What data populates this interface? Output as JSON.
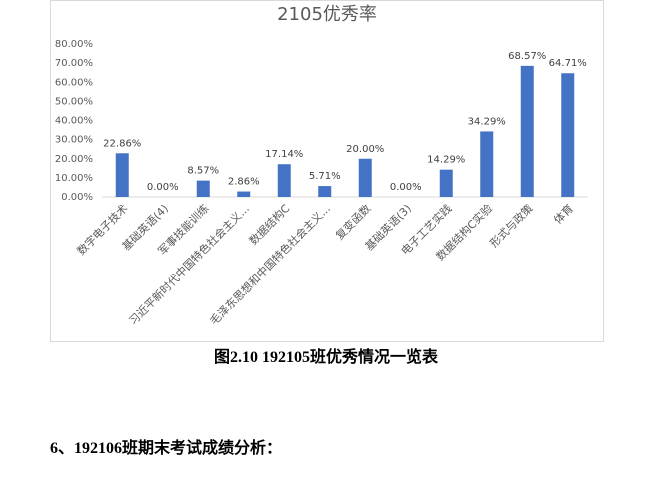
{
  "chart_data": {
    "type": "bar",
    "title": "2105优秀率",
    "categories": [
      "数字电子技术",
      "基础英语(4)",
      "军事技能训练",
      "习近平新时代中国特色社会主义...",
      "数据结构C",
      "毛泽东思想和中国特色社会主义...",
      "复变函数",
      "基础英语(3)",
      "电子工艺实践",
      "数据结构C实验",
      "形式与政策",
      "体育"
    ],
    "values": [
      22.86,
      0,
      8.57,
      2.86,
      17.14,
      5.71,
      20,
      0,
      14.29,
      34.29,
      68.57,
      64.71
    ],
    "value_labels": [
      "22.86%",
      "0.00%",
      "8.57%",
      "2.86%",
      "17.14%",
      "5.71%",
      "20.00%",
      "0.00%",
      "14.29%",
      "34.29%",
      "68.57%",
      "64.71%"
    ],
    "color": "#4472c4",
    "ylim": [
      0,
      80
    ],
    "yticks": [
      {
        "value": 0,
        "label": "0.00%"
      },
      {
        "value": 10,
        "label": "10.00%"
      },
      {
        "value": 20,
        "label": "20.00%"
      },
      {
        "value": 30,
        "label": "30.00%"
      },
      {
        "value": 40,
        "label": "40.00%"
      },
      {
        "value": 50,
        "label": "50.00%"
      },
      {
        "value": 60,
        "label": "60.00%"
      },
      {
        "value": 70,
        "label": "70.00%"
      },
      {
        "value": 80,
        "label": "80.00%"
      }
    ],
    "grid": false
  },
  "caption": "图2.10 192105班优秀情况一览表",
  "heading": "6、192106班期末考试成绩分析："
}
